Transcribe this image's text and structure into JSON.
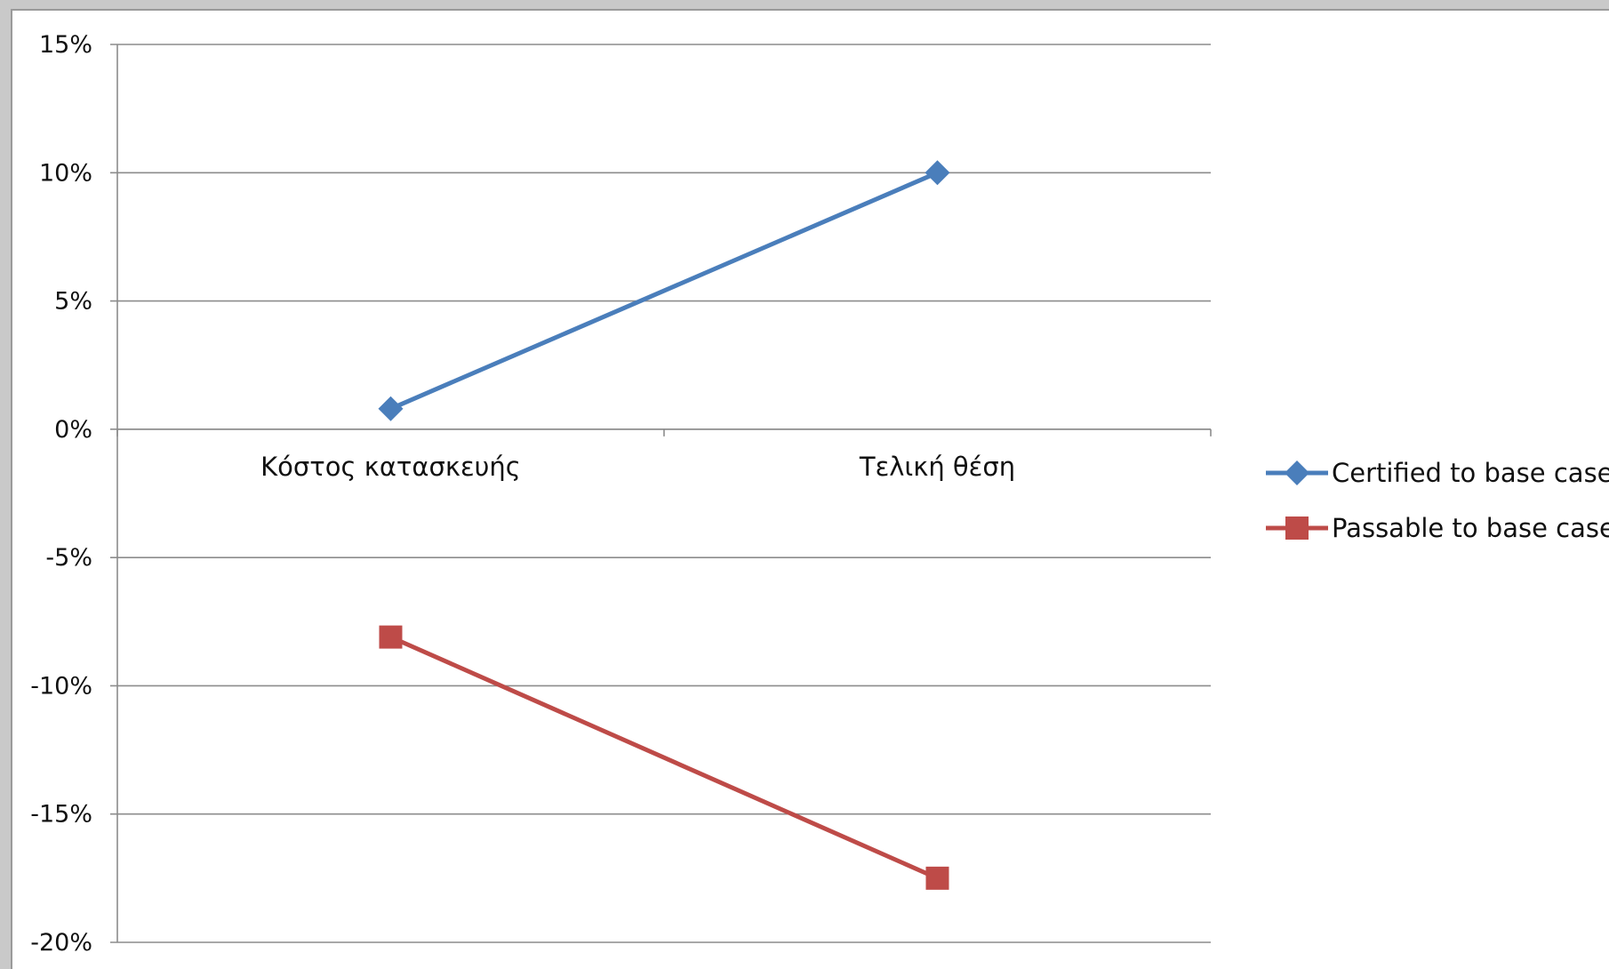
{
  "chart_data": {
    "type": "line",
    "title": "",
    "xlabel": "",
    "ylabel": "",
    "categories": [
      "Κόστος κατασκευής",
      "Τελική θέση"
    ],
    "series": [
      {
        "name": "Certified to base case",
        "values": [
          0.8,
          10.0
        ],
        "color": "#4a7ebb",
        "marker": "diamond"
      },
      {
        "name": "Passable to base case",
        "values": [
          -8.1,
          -17.5
        ],
        "color": "#be4b48",
        "marker": "square"
      }
    ],
    "ylim": [
      -20,
      15
    ],
    "ytick_values": [
      15,
      10,
      5,
      0,
      -5,
      -10,
      -15,
      -20
    ],
    "ytick_labels": [
      "15%",
      "10%",
      "5%",
      "0%",
      "-5%",
      "-10%",
      "-15%",
      "-20%"
    ],
    "grid": true,
    "legend_position": "right"
  }
}
